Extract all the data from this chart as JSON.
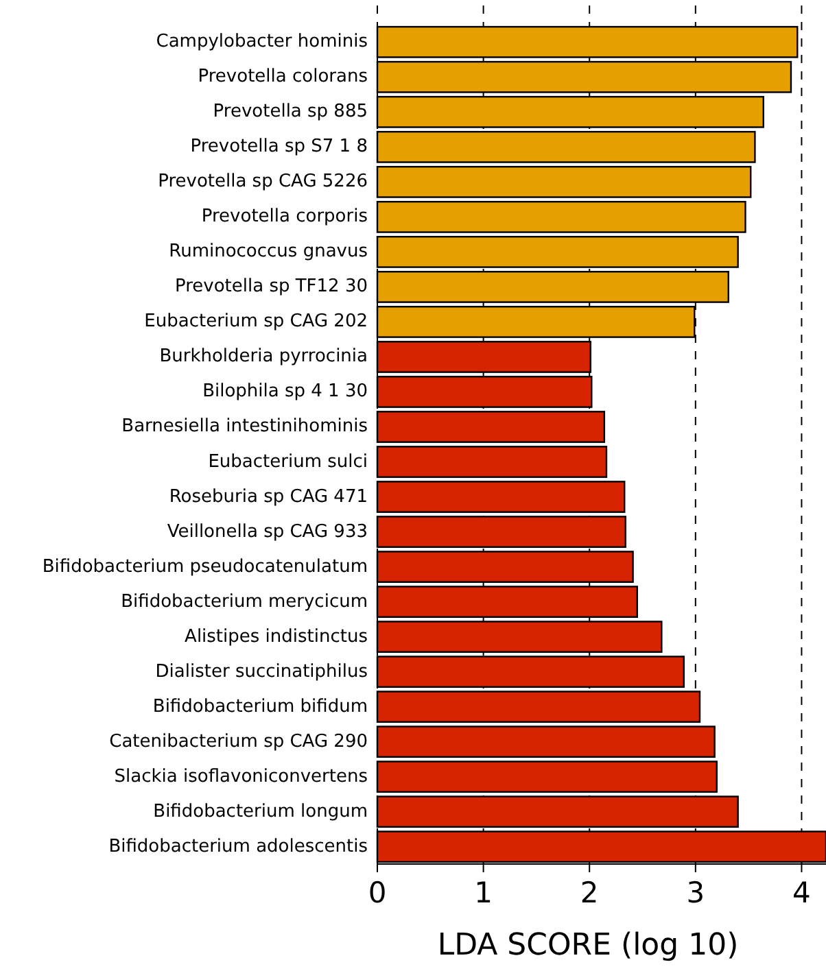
{
  "chart_data": {
    "type": "bar",
    "orientation": "horizontal",
    "xlabel": "LDA SCORE (log 10)",
    "categories": [
      "Campylobacter hominis",
      "Prevotella colorans",
      "Prevotella sp 885",
      "Prevotella sp S7 1 8",
      "Prevotella sp CAG 5226",
      "Prevotella corporis",
      "Ruminococcus gnavus",
      "Prevotella sp TF12 30",
      "Eubacterium sp CAG 202",
      "Burkholderia pyrrocinia",
      "Bilophila sp 4 1 30",
      "Barnesiella intestinihominis",
      "Eubacterium sulci",
      "Roseburia sp CAG 471",
      "Veillonella sp CAG 933",
      "Bifidobacterium pseudocatenulatum",
      "Bifidobacterium merycicum",
      "Alistipes indistinctus",
      "Dialister succinatiphilus",
      "Bifidobacterium bifidum",
      "Catenibacterium sp CAG 290",
      "Slackia isoflavoniconvertens",
      "Bifidobacterium longum",
      "Bifidobacterium adolescentis"
    ],
    "values": [
      3.96,
      3.9,
      3.64,
      3.56,
      3.52,
      3.47,
      3.4,
      3.31,
      2.99,
      2.01,
      2.02,
      2.14,
      2.16,
      2.33,
      2.34,
      2.41,
      2.45,
      2.68,
      2.89,
      3.04,
      3.18,
      3.2,
      3.4,
      4.23
    ],
    "colors": [
      "#e5a000",
      "#e5a000",
      "#e5a000",
      "#e5a000",
      "#e5a000",
      "#e5a000",
      "#e5a000",
      "#e5a000",
      "#e5a000",
      "#d62300",
      "#d62300",
      "#d62300",
      "#d62300",
      "#d62300",
      "#d62300",
      "#d62300",
      "#d62300",
      "#d62300",
      "#d62300",
      "#d62300",
      "#d62300",
      "#d62300",
      "#d62300",
      "#d62300"
    ],
    "xlim": [
      0,
      4.23
    ],
    "xticks": [
      0,
      1,
      2,
      3,
      4
    ],
    "grid": "x",
    "line_style": "dashed"
  }
}
